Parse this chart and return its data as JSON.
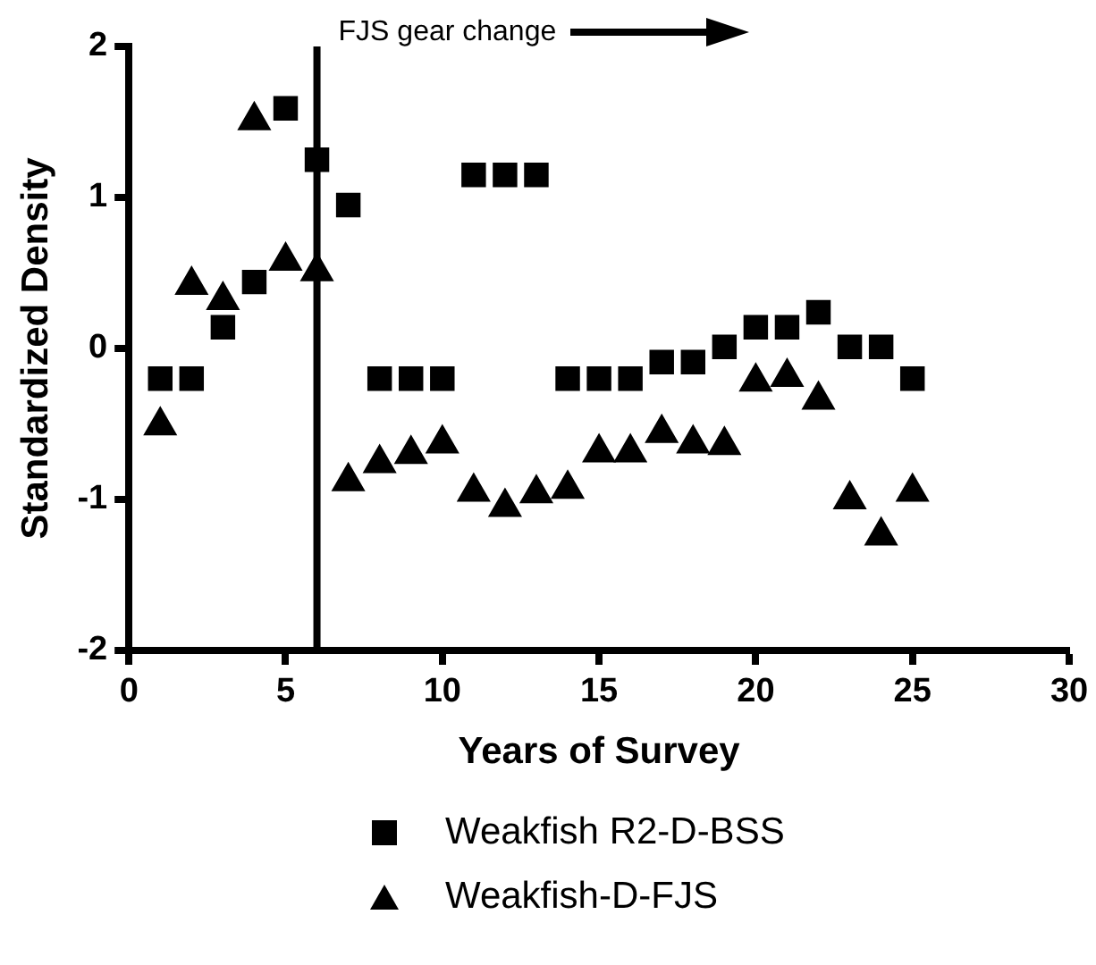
{
  "chart_data": {
    "type": "scatter",
    "xlabel": "Years of Survey",
    "ylabel": "Standardized Density",
    "x": [
      1,
      2,
      3,
      4,
      5,
      6,
      7,
      8,
      9,
      10,
      11,
      12,
      13,
      14,
      15,
      16,
      17,
      18,
      19,
      20,
      21,
      22,
      23,
      24,
      25
    ],
    "series": [
      {
        "name": "Weakfish R2-D-BSS",
        "color": "#000000",
        "marker": "square",
        "values": [
          -0.2,
          -0.2,
          0.14,
          0.44,
          1.59,
          1.25,
          0.95,
          -0.2,
          -0.2,
          -0.2,
          1.15,
          1.15,
          1.15,
          -0.2,
          -0.2,
          -0.2,
          -0.09,
          -0.09,
          0.01,
          0.14,
          0.14,
          0.24,
          0.01,
          0.01,
          -0.2
        ]
      },
      {
        "name": "Weakfish-D-FJS",
        "color": "#000000",
        "marker": "triangle",
        "values": [
          -0.51,
          0.42,
          0.32,
          1.51,
          0.58,
          0.51,
          -0.88,
          -0.76,
          -0.7,
          -0.63,
          -0.95,
          -1.05,
          -0.96,
          -0.93,
          -0.69,
          -0.69,
          -0.56,
          -0.63,
          -0.64,
          -0.22,
          -0.19,
          -0.34,
          -1.0,
          -1.24,
          -0.95
        ]
      }
    ],
    "xlim": [
      0,
      30
    ],
    "xticks": [
      0,
      5,
      10,
      15,
      20,
      25,
      30
    ],
    "ylim": [
      -2,
      2
    ],
    "yticks": [
      -2,
      -1,
      0,
      1,
      2
    ],
    "ref_lines": [
      {
        "axis": "x",
        "value": 6,
        "label": "FJS gear change",
        "color": "#000000"
      }
    ],
    "grid": false,
    "legend": "bottom"
  }
}
